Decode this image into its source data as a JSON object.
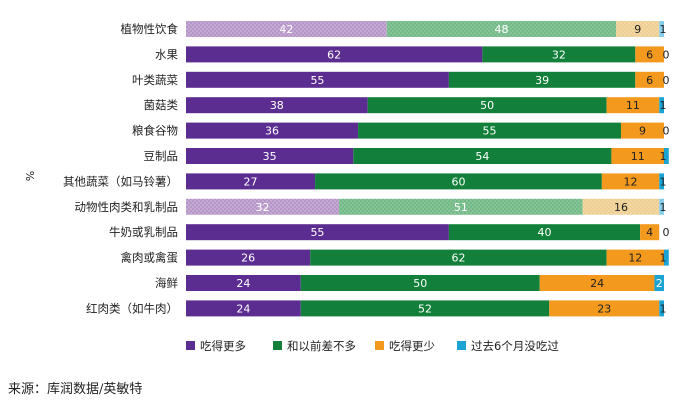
{
  "chart_data": {
    "type": "bar",
    "orientation": "horizontal",
    "stacked": true,
    "ylabel": "%",
    "categories": [
      "植物性饮食",
      "水果",
      "叶类蔬菜",
      "菌菇类",
      "粮食谷物",
      "豆制品",
      "其他蔬菜（如马铃薯）",
      "动物性肉类和乳制品",
      "牛奶或乳制品",
      "禽肉或禽蛋",
      "海鲜",
      "红肉类（如牛肉）"
    ],
    "summary_rows": [
      "植物性饮食",
      "动物性肉类和乳制品"
    ],
    "series": [
      {
        "name": "吃得更多",
        "color": "#5b2d91",
        "summary_color": "#c6a9d3",
        "values": [
          42,
          62,
          55,
          38,
          36,
          35,
          27,
          32,
          55,
          26,
          24,
          24
        ]
      },
      {
        "name": "和以前差不多",
        "color": "#12803a",
        "summary_color": "#86c497",
        "values": [
          48,
          32,
          39,
          50,
          55,
          54,
          60,
          51,
          40,
          62,
          50,
          52
        ]
      },
      {
        "name": "吃得更少",
        "color": "#f39a1e",
        "summary_color": "#efd8a6",
        "values": [
          9,
          6,
          6,
          11,
          9,
          11,
          12,
          16,
          4,
          12,
          24,
          23
        ]
      },
      {
        "name": "过去6个月没吃过",
        "color": "#1ba3d4",
        "summary_color": "#8fd0ea",
        "values": [
          1,
          0,
          0,
          1,
          0,
          1,
          1,
          1,
          0,
          1,
          2,
          1
        ]
      }
    ],
    "xlim": [
      0,
      100
    ],
    "grid": false,
    "legend_position": "bottom"
  },
  "source_text": "来源：库润数据/英敏特"
}
